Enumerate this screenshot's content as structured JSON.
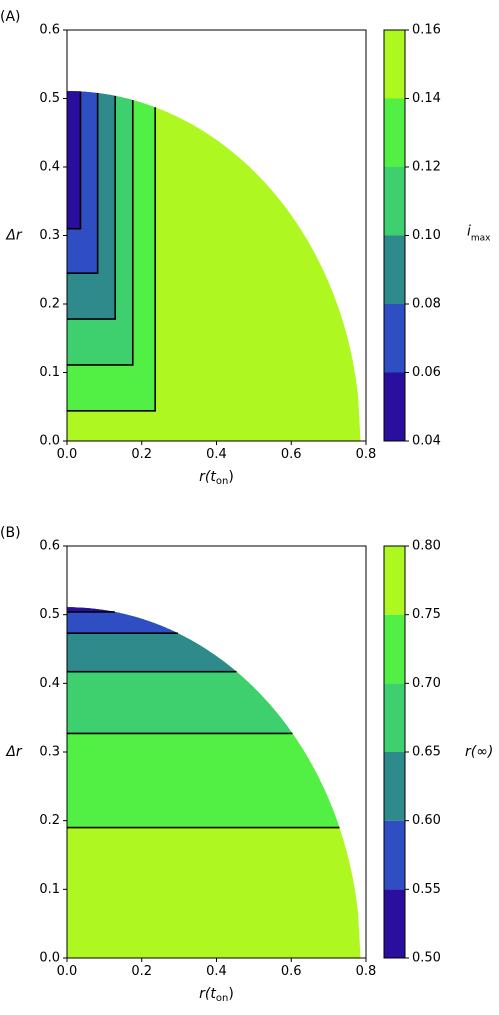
{
  "chart_data": [
    {
      "type": "contour",
      "panel_label": "(A)",
      "xlabel_base": "r(t",
      "xlabel_sub": "on",
      "xlabel_close": ")",
      "ylabel": "Δr",
      "xlim": [
        0,
        0.8
      ],
      "ylim": [
        0,
        0.6
      ],
      "xticks": [
        "0.0",
        "0.2",
        "0.4",
        "0.6",
        "0.8"
      ],
      "yticks": [
        "0.0",
        "0.1",
        "0.2",
        "0.3",
        "0.4",
        "0.5",
        "0.6"
      ],
      "domain_boundary": {
        "x_max": 0.7854,
        "y_max": 0.5108
      },
      "contour_lines": [
        {
          "x_corner": 0.036,
          "y_corner": 0.31
        },
        {
          "x_corner": 0.082,
          "y_corner": 0.245
        },
        {
          "x_corner": 0.129,
          "y_corner": 0.178
        },
        {
          "x_corner": 0.176,
          "y_corner": 0.111
        },
        {
          "x_corner": 0.236,
          "y_corner": 0.044
        }
      ],
      "colorbar": {
        "label_base": "i",
        "label_sub": "max",
        "levels": [
          0.04,
          0.06,
          0.08,
          0.1,
          0.12,
          0.14,
          0.16
        ],
        "tick_labels": [
          "0.04",
          "0.06",
          "0.08",
          "0.10",
          "0.12",
          "0.14",
          "0.16"
        ],
        "colors": [
          "#2a0f9e",
          "#2f4ec4",
          "#2f8a8c",
          "#3ecf6e",
          "#52f044",
          "#aef720"
        ]
      }
    },
    {
      "type": "contour",
      "panel_label": "(B)",
      "xlabel_base": "r(t",
      "xlabel_sub": "on",
      "xlabel_close": ")",
      "ylabel": "Δr",
      "xlim": [
        0,
        0.8
      ],
      "ylim": [
        0,
        0.6
      ],
      "xticks": [
        "0.0",
        "0.2",
        "0.4",
        "0.6",
        "0.8"
      ],
      "yticks": [
        "0.0",
        "0.1",
        "0.2",
        "0.3",
        "0.4",
        "0.5",
        "0.6"
      ],
      "domain_boundary": {
        "x_max": 0.7854,
        "y_max": 0.5108
      },
      "contour_lines": [
        {
          "y": 0.504
        },
        {
          "y": 0.473
        },
        {
          "y": 0.417
        },
        {
          "y": 0.327
        },
        {
          "y": 0.19
        }
      ],
      "colorbar": {
        "label": "r(∞)",
        "levels": [
          0.5,
          0.55,
          0.6,
          0.65,
          0.7,
          0.75,
          0.8
        ],
        "tick_labels": [
          "0.50",
          "0.55",
          "0.60",
          "0.65",
          "0.70",
          "0.75",
          "0.80"
        ],
        "colors": [
          "#2a0f9e",
          "#2f4ec4",
          "#2f8a8c",
          "#3ecf6e",
          "#52f044",
          "#aef720"
        ]
      }
    }
  ]
}
